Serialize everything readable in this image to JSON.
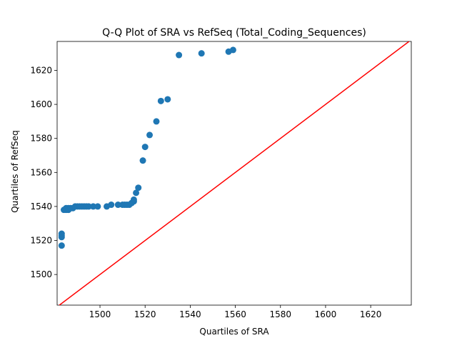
{
  "chart_data": {
    "type": "scatter",
    "title": "Q-Q Plot of SRA vs RefSeq (Total_Coding_Sequences)",
    "xlabel": "Quartiles of SRA",
    "ylabel": "Quartiles of RefSeq",
    "xlim": [
      1481,
      1638
    ],
    "ylim": [
      1482,
      1637
    ],
    "xticks": [
      1500,
      1520,
      1540,
      1560,
      1580,
      1600,
      1620
    ],
    "yticks": [
      1500,
      1520,
      1540,
      1560,
      1580,
      1600,
      1620
    ],
    "grid": false,
    "legend": false,
    "marker_color": "#1f77b4",
    "reference_line": {
      "color": "#ff0000",
      "from": [
        1481,
        1481
      ],
      "to": [
        1638,
        1638
      ]
    },
    "points": [
      [
        1483,
        1517
      ],
      [
        1483,
        1522
      ],
      [
        1483,
        1523
      ],
      [
        1483,
        1524
      ],
      [
        1484,
        1538
      ],
      [
        1485,
        1538
      ],
      [
        1485,
        1539
      ],
      [
        1486,
        1538
      ],
      [
        1486,
        1539
      ],
      [
        1487,
        1539
      ],
      [
        1488,
        1539
      ],
      [
        1489,
        1540
      ],
      [
        1490,
        1540
      ],
      [
        1491,
        1540
      ],
      [
        1492,
        1540
      ],
      [
        1493,
        1540
      ],
      [
        1494,
        1540
      ],
      [
        1495,
        1540
      ],
      [
        1497,
        1540
      ],
      [
        1499,
        1540
      ],
      [
        1503,
        1540
      ],
      [
        1505,
        1541
      ],
      [
        1508,
        1541
      ],
      [
        1510,
        1541
      ],
      [
        1511,
        1541
      ],
      [
        1512,
        1541
      ],
      [
        1513,
        1541
      ],
      [
        1514,
        1542
      ],
      [
        1515,
        1543
      ],
      [
        1515,
        1544
      ],
      [
        1516,
        1548
      ],
      [
        1517,
        1551
      ],
      [
        1519,
        1567
      ],
      [
        1520,
        1575
      ],
      [
        1522,
        1582
      ],
      [
        1525,
        1590
      ],
      [
        1527,
        1602
      ],
      [
        1530,
        1603
      ],
      [
        1535,
        1629
      ],
      [
        1545,
        1630
      ],
      [
        1557,
        1631
      ],
      [
        1559,
        1632
      ]
    ]
  }
}
